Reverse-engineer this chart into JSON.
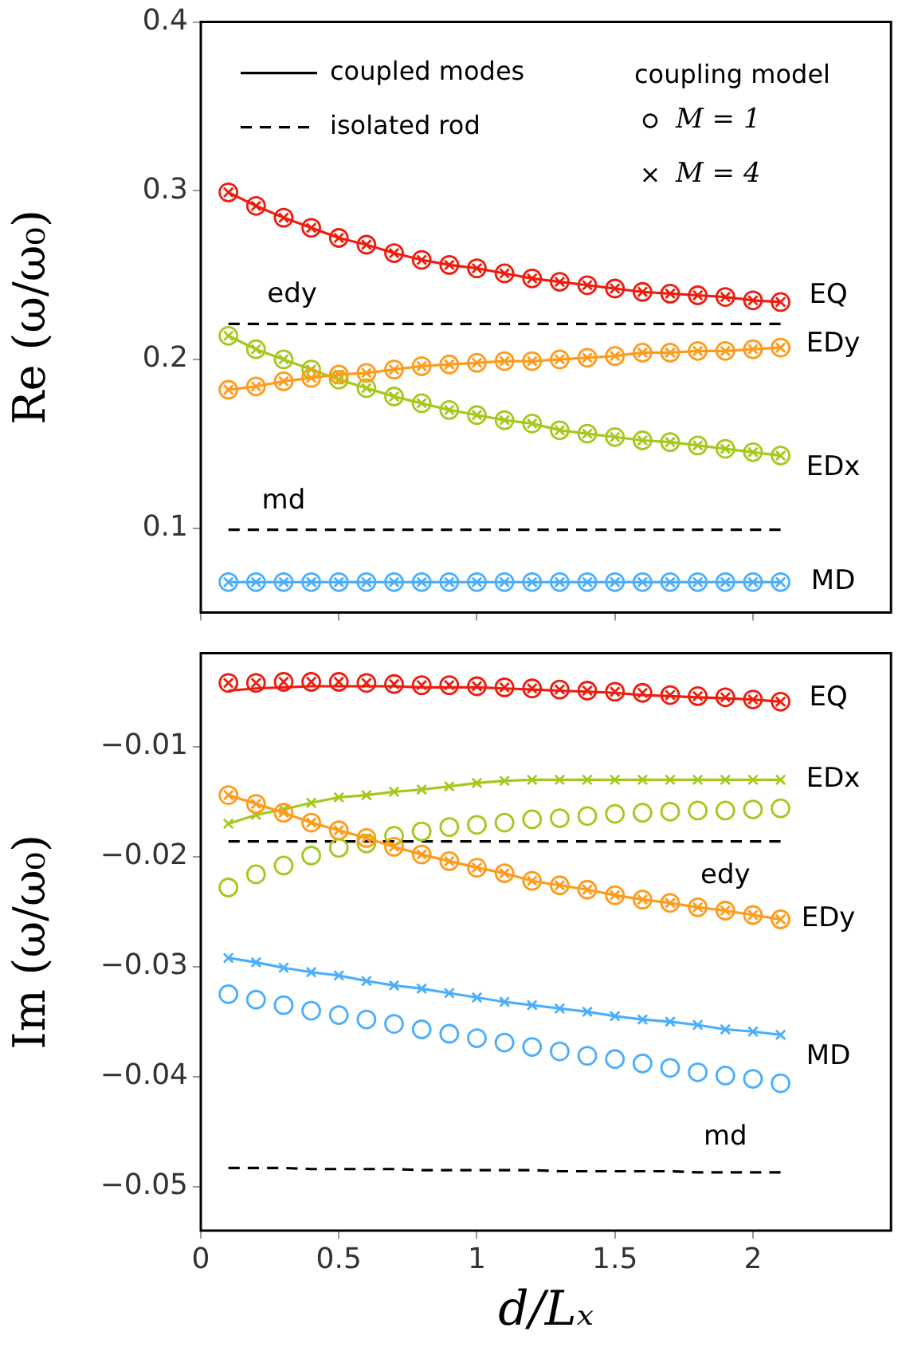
{
  "chart_data": [
    {
      "type": "line",
      "ylabel": "Re (ω/ω₀)",
      "xlim": [
        0,
        2.5
      ],
      "xticks": [
        0,
        0.5,
        1,
        1.5,
        2
      ],
      "ylim": [
        0.05,
        0.4
      ],
      "yticks": [
        0.1,
        0.2,
        0.3,
        0.4
      ],
      "tick_labels": "y",
      "legend": "top",
      "legend_title": "coupling model",
      "x": [
        0.1,
        0.2,
        0.3,
        0.4,
        0.5,
        0.6,
        0.7,
        0.8,
        0.9,
        1.0,
        1.1,
        1.2,
        1.3,
        1.4,
        1.5,
        1.6,
        1.7,
        1.8,
        1.9,
        2.0,
        2.1
      ],
      "series": [
        {
          "type": "line",
          "color": "#ee1c0e",
          "values": [
            0.299,
            0.291,
            0.284,
            0.278,
            0.272,
            0.268,
            0.263,
            0.259,
            0.256,
            0.254,
            0.251,
            0.248,
            0.246,
            0.244,
            0.242,
            0.24,
            0.239,
            0.238,
            0.237,
            0.235,
            0.234
          ]
        },
        {
          "type": "scatter",
          "marker": "circle",
          "color": "#ee1c0e",
          "values": [
            0.299,
            0.291,
            0.284,
            0.278,
            0.272,
            0.268,
            0.263,
            0.259,
            0.256,
            0.254,
            0.251,
            0.248,
            0.246,
            0.244,
            0.242,
            0.24,
            0.239,
            0.238,
            0.237,
            0.235,
            0.234
          ]
        },
        {
          "type": "scatter",
          "marker": "cross",
          "color": "#ee1c0e",
          "values": [
            0.299,
            0.291,
            0.284,
            0.278,
            0.272,
            0.268,
            0.263,
            0.259,
            0.256,
            0.254,
            0.251,
            0.248,
            0.246,
            0.244,
            0.242,
            0.24,
            0.239,
            0.238,
            0.237,
            0.235,
            0.234
          ]
        },
        {
          "type": "line",
          "color": "#ff9a1a",
          "values": [
            0.182,
            0.184,
            0.187,
            0.189,
            0.191,
            0.192,
            0.194,
            0.196,
            0.197,
            0.198,
            0.199,
            0.199,
            0.2,
            0.201,
            0.202,
            0.204,
            0.204,
            0.205,
            0.205,
            0.206,
            0.207
          ]
        },
        {
          "type": "scatter",
          "marker": "circle",
          "color": "#ff9a1a",
          "values": [
            0.182,
            0.184,
            0.187,
            0.189,
            0.191,
            0.192,
            0.194,
            0.196,
            0.197,
            0.198,
            0.199,
            0.199,
            0.2,
            0.201,
            0.202,
            0.204,
            0.204,
            0.205,
            0.205,
            0.206,
            0.207
          ]
        },
        {
          "type": "scatter",
          "marker": "cross",
          "color": "#ff9a1a",
          "values": [
            0.182,
            0.184,
            0.187,
            0.189,
            0.191,
            0.192,
            0.194,
            0.196,
            0.197,
            0.198,
            0.199,
            0.199,
            0.2,
            0.201,
            0.202,
            0.204,
            0.204,
            0.205,
            0.205,
            0.206,
            0.207
          ]
        },
        {
          "type": "line",
          "color": "#a4c81c",
          "values": [
            0.214,
            0.206,
            0.2,
            0.194,
            0.188,
            0.183,
            0.178,
            0.174,
            0.17,
            0.167,
            0.164,
            0.162,
            0.158,
            0.156,
            0.154,
            0.152,
            0.151,
            0.149,
            0.147,
            0.145,
            0.143
          ]
        },
        {
          "type": "scatter",
          "marker": "circle",
          "color": "#a4c81c",
          "values": [
            0.214,
            0.206,
            0.2,
            0.194,
            0.188,
            0.183,
            0.178,
            0.174,
            0.17,
            0.167,
            0.164,
            0.162,
            0.158,
            0.156,
            0.154,
            0.152,
            0.151,
            0.149,
            0.147,
            0.145,
            0.143
          ]
        },
        {
          "type": "scatter",
          "marker": "cross",
          "color": "#a4c81c",
          "values": [
            0.214,
            0.206,
            0.2,
            0.194,
            0.188,
            0.183,
            0.178,
            0.174,
            0.17,
            0.167,
            0.164,
            0.162,
            0.158,
            0.156,
            0.154,
            0.152,
            0.151,
            0.149,
            0.147,
            0.145,
            0.143
          ]
        },
        {
          "type": "line",
          "color": "#4aaeff",
          "values": [
            0.068,
            0.068,
            0.068,
            0.068,
            0.068,
            0.068,
            0.068,
            0.068,
            0.068,
            0.068,
            0.068,
            0.068,
            0.068,
            0.068,
            0.068,
            0.068,
            0.068,
            0.068,
            0.068,
            0.068,
            0.068
          ]
        },
        {
          "type": "scatter",
          "marker": "circle",
          "color": "#4aaeff",
          "values": [
            0.068,
            0.068,
            0.068,
            0.068,
            0.068,
            0.068,
            0.068,
            0.068,
            0.068,
            0.068,
            0.068,
            0.068,
            0.068,
            0.068,
            0.068,
            0.068,
            0.068,
            0.068,
            0.068,
            0.068,
            0.068
          ]
        },
        {
          "type": "scatter",
          "marker": "cross",
          "color": "#4aaeff",
          "values": [
            0.068,
            0.068,
            0.068,
            0.068,
            0.068,
            0.068,
            0.068,
            0.068,
            0.068,
            0.068,
            0.068,
            0.068,
            0.068,
            0.068,
            0.068,
            0.068,
            0.068,
            0.068,
            0.068,
            0.068,
            0.068
          ]
        },
        {
          "type": "line",
          "line_style": "dashed",
          "color": "#000000",
          "values": [
            0.221,
            0.221,
            0.221,
            0.221,
            0.221,
            0.221,
            0.221,
            0.221,
            0.221,
            0.221,
            0.221,
            0.221,
            0.221,
            0.221,
            0.221,
            0.221,
            0.221,
            0.221,
            0.221,
            0.221,
            0.221
          ]
        },
        {
          "type": "line",
          "line_style": "dashed",
          "color": "#000000",
          "values": [
            0.099,
            0.099,
            0.099,
            0.099,
            0.099,
            0.099,
            0.099,
            0.099,
            0.099,
            0.099,
            0.099,
            0.099,
            0.099,
            0.099,
            0.099,
            0.099,
            0.099,
            0.099,
            0.099,
            0.099,
            0.099
          ]
        },
        {
          "type": "line",
          "name": "coupled modes",
          "color": "#000000",
          "values": [
            null,
            null,
            null,
            null,
            null,
            null,
            null,
            null,
            null,
            null,
            null,
            null,
            null,
            null,
            null,
            null,
            null,
            null,
            null,
            null,
            null
          ]
        },
        {
          "type": "line",
          "name": "isolated rod",
          "line_style": "dashed",
          "color": "#000000",
          "values": [
            null,
            null,
            null,
            null,
            null,
            null,
            null,
            null,
            null,
            null,
            null,
            null,
            null,
            null,
            null,
            null,
            null,
            null,
            null,
            null,
            null
          ]
        },
        {
          "type": "scatter",
          "name": "M = 1",
          "marker": "circle",
          "color": "#000000",
          "values": [
            null,
            null,
            null,
            null,
            null,
            null,
            null,
            null,
            null,
            null,
            null,
            null,
            null,
            null,
            null,
            null,
            null,
            null,
            null,
            null,
            null
          ]
        },
        {
          "type": "scatter",
          "name": "M = 4",
          "marker": "cross",
          "color": "#000000",
          "values": [
            null,
            null,
            null,
            null,
            null,
            null,
            null,
            null,
            null,
            null,
            null,
            null,
            null,
            null,
            null,
            null,
            null,
            null,
            null,
            null,
            null
          ]
        }
      ],
      "annotations": [
        {
          "text": "EQ",
          "x": 2.1,
          "y": 0.234
        },
        {
          "text": "EDy",
          "x": 2.1,
          "y": 0.207
        },
        {
          "text": "EDx",
          "x": 2.1,
          "y": 0.143
        },
        {
          "text": "MD",
          "x": 2.1,
          "y": 0.068
        },
        {
          "text": "edy",
          "x": 0.4,
          "y": 0.221
        },
        {
          "text": "md",
          "x": 0.3,
          "y": 0.099
        }
      ]
    },
    {
      "type": "line",
      "ylabel": "Im (ω/ω₀)",
      "xlabel": "d/Lₓ",
      "xlim": [
        0,
        2.5
      ],
      "xticks": [
        0,
        0.5,
        1,
        1.5,
        2
      ],
      "ylim": [
        -0.054,
        -0.0015
      ],
      "yticks": [
        {
          "value": -0.01,
          "label": "−0.01"
        },
        {
          "value": -0.02,
          "label": "−0.02"
        },
        {
          "value": -0.03,
          "label": "−0.03"
        },
        {
          "value": -0.04,
          "label": "−0.04"
        },
        {
          "value": -0.05,
          "label": "−0.05"
        }
      ],
      "x": [
        0.1,
        0.2,
        0.3,
        0.4,
        0.5,
        0.6,
        0.7,
        0.8,
        0.9,
        1.0,
        1.1,
        1.2,
        1.3,
        1.4,
        1.5,
        1.6,
        1.7,
        1.8,
        1.9,
        2.0,
        2.1
      ],
      "series": [
        {
          "type": "line",
          "color": "#ee1c0e",
          "values": [
            -0.0049,
            -0.0047,
            -0.0046,
            -0.0045,
            -0.0045,
            -0.0045,
            -0.0045,
            -0.0046,
            -0.0046,
            -0.0046,
            -0.0047,
            -0.0048,
            -0.0049,
            -0.005,
            -0.0051,
            -0.0053,
            -0.0054,
            -0.0055,
            -0.0056,
            -0.0057,
            -0.0059
          ]
        },
        {
          "type": "scatter",
          "marker": "circle",
          "color": "#ee1c0e",
          "values": [
            -0.0042,
            -0.0042,
            -0.0041,
            -0.0041,
            -0.0041,
            -0.0042,
            -0.0043,
            -0.0044,
            -0.0044,
            -0.0045,
            -0.0046,
            -0.0047,
            -0.0048,
            -0.0049,
            -0.005,
            -0.0051,
            -0.0053,
            -0.0054,
            -0.0055,
            -0.0057,
            -0.0059
          ]
        },
        {
          "type": "scatter",
          "marker": "cross",
          "color": "#ee1c0e",
          "values": [
            -0.0042,
            -0.0042,
            -0.0041,
            -0.0041,
            -0.0041,
            -0.0042,
            -0.0043,
            -0.0044,
            -0.0044,
            -0.0045,
            -0.0046,
            -0.0047,
            -0.0048,
            -0.0049,
            -0.005,
            -0.0051,
            -0.0053,
            -0.0054,
            -0.0055,
            -0.0057,
            -0.0059
          ]
        },
        {
          "type": "line",
          "color": "#ff9a1a",
          "values": [
            -0.0144,
            -0.0152,
            -0.016,
            -0.0169,
            -0.0176,
            -0.0183,
            -0.0191,
            -0.0198,
            -0.0204,
            -0.021,
            -0.0215,
            -0.0222,
            -0.0226,
            -0.023,
            -0.0235,
            -0.0239,
            -0.0242,
            -0.0246,
            -0.0249,
            -0.0253,
            -0.0257
          ]
        },
        {
          "type": "scatter",
          "marker": "circle",
          "color": "#ff9a1a",
          "values": [
            -0.0144,
            -0.0152,
            -0.016,
            -0.0169,
            -0.0176,
            -0.0183,
            -0.0191,
            -0.0198,
            -0.0204,
            -0.021,
            -0.0215,
            -0.0222,
            -0.0226,
            -0.023,
            -0.0235,
            -0.0239,
            -0.0242,
            -0.0246,
            -0.0249,
            -0.0253,
            -0.0257
          ]
        },
        {
          "type": "scatter",
          "marker": "cross",
          "color": "#ff9a1a",
          "values": [
            -0.0144,
            -0.0152,
            -0.016,
            -0.0169,
            -0.0176,
            -0.0183,
            -0.0191,
            -0.0198,
            -0.0204,
            -0.021,
            -0.0215,
            -0.0222,
            -0.0226,
            -0.023,
            -0.0235,
            -0.0239,
            -0.0242,
            -0.0246,
            -0.0249,
            -0.0253,
            -0.0257
          ]
        },
        {
          "type": "line",
          "color": "#a4c81c",
          "values": [
            -0.017,
            -0.0162,
            -0.0157,
            -0.0151,
            -0.0146,
            -0.0144,
            -0.0141,
            -0.0139,
            -0.0136,
            -0.0133,
            -0.0131,
            -0.013,
            -0.013,
            -0.013,
            -0.013,
            -0.013,
            -0.013,
            -0.013,
            -0.013,
            -0.013,
            -0.013
          ]
        },
        {
          "type": "scatter",
          "marker": "circle",
          "color": "#a4c81c",
          "values": [
            -0.0228,
            -0.0216,
            -0.0208,
            -0.0199,
            -0.0192,
            -0.0188,
            -0.0181,
            -0.0177,
            -0.0173,
            -0.0171,
            -0.0169,
            -0.0166,
            -0.0165,
            -0.0163,
            -0.0161,
            -0.016,
            -0.0159,
            -0.0158,
            -0.0158,
            -0.0157,
            -0.0156
          ]
        },
        {
          "type": "scatter",
          "marker": "cross",
          "color": "#a4c81c",
          "values": [
            -0.017,
            -0.0162,
            -0.0157,
            -0.0151,
            -0.0146,
            -0.0144,
            -0.0141,
            -0.0139,
            -0.0136,
            -0.0133,
            -0.0131,
            -0.013,
            -0.013,
            -0.013,
            -0.013,
            -0.013,
            -0.013,
            -0.013,
            -0.013,
            -0.013,
            -0.013
          ]
        },
        {
          "type": "line",
          "color": "#4aaeff",
          "values": [
            -0.0292,
            -0.0296,
            -0.0301,
            -0.0305,
            -0.0308,
            -0.0313,
            -0.0317,
            -0.032,
            -0.0324,
            -0.0328,
            -0.0332,
            -0.0335,
            -0.0338,
            -0.0341,
            -0.0345,
            -0.0348,
            -0.035,
            -0.0353,
            -0.0357,
            -0.0359,
            -0.0362
          ]
        },
        {
          "type": "scatter",
          "marker": "circle",
          "color": "#4aaeff",
          "values": [
            -0.0325,
            -0.033,
            -0.0335,
            -0.034,
            -0.0344,
            -0.0348,
            -0.0352,
            -0.0357,
            -0.0361,
            -0.0365,
            -0.0369,
            -0.0373,
            -0.0377,
            -0.0381,
            -0.0384,
            -0.0388,
            -0.0392,
            -0.0396,
            -0.0399,
            -0.0402,
            -0.0406
          ]
        },
        {
          "type": "scatter",
          "marker": "cross",
          "color": "#4aaeff",
          "values": [
            -0.0292,
            -0.0296,
            -0.0301,
            -0.0305,
            -0.0308,
            -0.0313,
            -0.0317,
            -0.032,
            -0.0324,
            -0.0328,
            -0.0332,
            -0.0335,
            -0.0338,
            -0.0341,
            -0.0345,
            -0.0348,
            -0.035,
            -0.0353,
            -0.0357,
            -0.0359,
            -0.0362
          ]
        },
        {
          "type": "line",
          "line_style": "dashed",
          "color": "#000000",
          "values": [
            -0.0186,
            -0.0186,
            -0.0186,
            -0.0186,
            -0.0186,
            -0.0186,
            -0.0186,
            -0.0186,
            -0.0186,
            -0.0186,
            -0.0186,
            -0.0186,
            -0.0186,
            -0.0186,
            -0.0186,
            -0.0186,
            -0.0186,
            -0.0186,
            -0.0186,
            -0.0186,
            -0.0186
          ]
        },
        {
          "type": "line",
          "line_style": "dashed",
          "color": "#000000",
          "values": [
            -0.0483,
            -0.0483,
            -0.0483,
            -0.0484,
            -0.0484,
            -0.0484,
            -0.0484,
            -0.0485,
            -0.0485,
            -0.0485,
            -0.0485,
            -0.0485,
            -0.0486,
            -0.0486,
            -0.0486,
            -0.0486,
            -0.0486,
            -0.0487,
            -0.0487,
            -0.0487,
            -0.0487
          ]
        }
      ],
      "annotations": [
        {
          "text": "EQ",
          "x": 2.1,
          "y": -0.0059
        },
        {
          "text": "EDx",
          "x": 2.1,
          "y": -0.013
        },
        {
          "text": "edy",
          "x": 1.9,
          "y": -0.0186
        },
        {
          "text": "EDy",
          "x": 2.1,
          "y": -0.0257
        },
        {
          "text": "MD",
          "x": 2.1,
          "y": -0.0362
        },
        {
          "text": "md",
          "x": 1.9,
          "y": -0.0487
        }
      ]
    }
  ]
}
